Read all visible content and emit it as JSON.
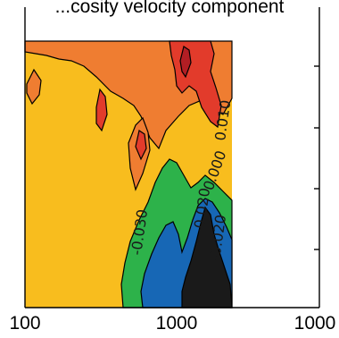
{
  "chart_data": {
    "type": "heatmap",
    "title": "...cosity velocity component",
    "xlabel": "",
    "ylabel": "",
    "x_tick_labels": [
      "100",
      "1000",
      "1000"
    ],
    "grid": false,
    "legend": "none",
    "contour_labels": [
      "0.010",
      "0.000",
      "-0.020",
      "-0.030",
      "-0.020"
    ],
    "level_colors": {
      "darkest_negative": "#1a1a1a",
      "negative_strong": "#1767b5",
      "negative_weak": "#2db24a",
      "zero": "#f8bd1e",
      "positive_weak": "#ef7d31",
      "positive_strong": "#e23b2b",
      "positive_max": "#b21e24"
    }
  }
}
